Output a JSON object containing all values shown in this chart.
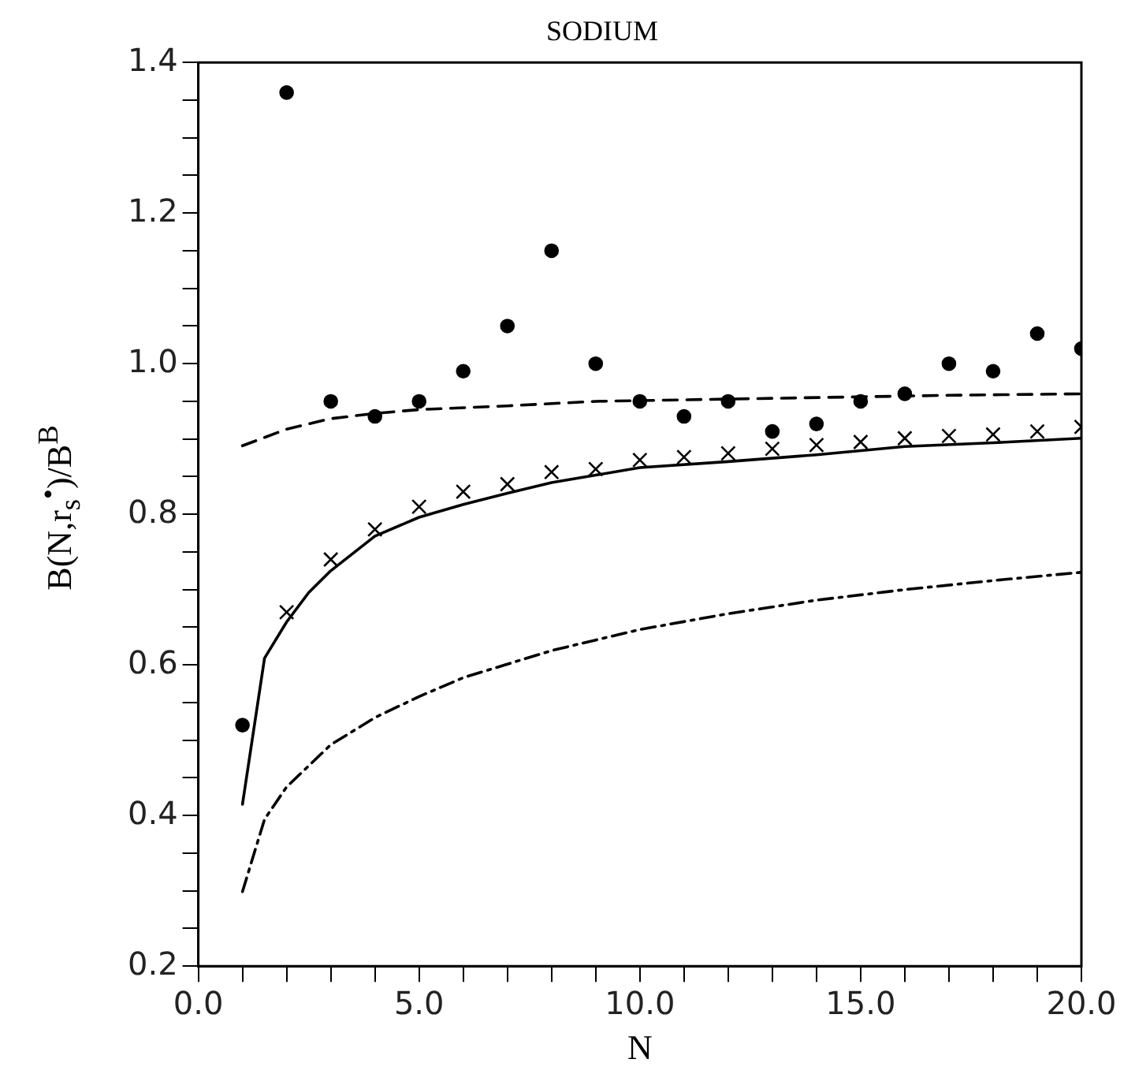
{
  "chart_data": {
    "type": "scatter",
    "title": "SODIUM",
    "xlabel": "N",
    "ylabel": "B(N,r$_{s}$$^{•}$)/B$^{B}$",
    "xlim": [
      0,
      20
    ],
    "ylim": [
      0.2,
      1.4
    ],
    "xticks": [
      {
        "value": 0,
        "label": "0.0"
      },
      {
        "value": 1,
        "label": null
      },
      {
        "value": 2,
        "label": null
      },
      {
        "value": 3,
        "label": null
      },
      {
        "value": 4,
        "label": null
      },
      {
        "value": 5,
        "label": "5.0"
      },
      {
        "value": 6,
        "label": null
      },
      {
        "value": 7,
        "label": null
      },
      {
        "value": 8,
        "label": null
      },
      {
        "value": 9,
        "label": null
      },
      {
        "value": 10,
        "label": "10.0"
      },
      {
        "value": 11,
        "label": null
      },
      {
        "value": 12,
        "label": null
      },
      {
        "value": 13,
        "label": null
      },
      {
        "value": 14,
        "label": null
      },
      {
        "value": 15,
        "label": "15.0"
      },
      {
        "value": 16,
        "label": null
      },
      {
        "value": 17,
        "label": null
      },
      {
        "value": 18,
        "label": null
      },
      {
        "value": 19,
        "label": null
      },
      {
        "value": 20,
        "label": "20.0"
      }
    ],
    "yticks": [
      {
        "value": 0.2,
        "label": "0.2"
      },
      {
        "value": 0.25,
        "label": null
      },
      {
        "value": 0.3,
        "label": null
      },
      {
        "value": 0.35,
        "label": null
      },
      {
        "value": 0.4,
        "label": "0.4"
      },
      {
        "value": 0.45,
        "label": null
      },
      {
        "value": 0.5,
        "label": null
      },
      {
        "value": 0.55,
        "label": null
      },
      {
        "value": 0.6,
        "label": "0.6"
      },
      {
        "value": 0.65,
        "label": null
      },
      {
        "value": 0.7,
        "label": null
      },
      {
        "value": 0.75,
        "label": null
      },
      {
        "value": 0.8,
        "label": "0.8"
      },
      {
        "value": 0.85,
        "label": null
      },
      {
        "value": 0.9,
        "label": null
      },
      {
        "value": 0.95,
        "label": null
      },
      {
        "value": 1.0,
        "label": "1.0"
      },
      {
        "value": 1.05,
        "label": null
      },
      {
        "value": 1.1,
        "label": null
      },
      {
        "value": 1.15,
        "label": null
      },
      {
        "value": 1.2,
        "label": "1.2"
      },
      {
        "value": 1.25,
        "label": null
      },
      {
        "value": 1.3,
        "label": null
      },
      {
        "value": 1.35,
        "label": null
      },
      {
        "value": 1.4,
        "label": "1.4"
      }
    ],
    "grid": false,
    "legend": false,
    "series": [
      {
        "marker": "circle",
        "color": "#000000",
        "x": [
          1,
          2,
          3,
          4,
          5,
          6,
          7,
          8,
          9,
          10,
          11,
          12,
          13,
          14,
          15,
          16,
          17,
          18,
          19,
          20
        ],
        "values": [
          0.52,
          1.36,
          0.95,
          0.93,
          0.95,
          0.99,
          1.05,
          1.15,
          1.0,
          0.95,
          0.93,
          0.95,
          0.91,
          0.92,
          0.95,
          0.96,
          1.0,
          0.99,
          1.04,
          1.02
        ]
      },
      {
        "marker": "cross",
        "color": "#000000",
        "x": [
          2,
          3,
          4,
          5,
          6,
          7,
          8,
          9,
          10,
          11,
          12,
          13,
          14,
          15,
          16,
          17,
          18,
          19,
          20
        ],
        "values": [
          0.67,
          0.74,
          0.78,
          0.81,
          0.83,
          0.84,
          0.856,
          0.86,
          0.872,
          0.876,
          0.881,
          0.887,
          0.892,
          0.896,
          0.901,
          0.904,
          0.906,
          0.91,
          0.916
        ]
      },
      {
        "type": "line",
        "line_style": "solid",
        "color": "#000000",
        "x": [
          1,
          1.5,
          2,
          2.5,
          3,
          4,
          5,
          6,
          7,
          8,
          9,
          10,
          12,
          14,
          16,
          18,
          20
        ],
        "values": [
          0.415,
          0.609,
          0.657,
          0.696,
          0.725,
          0.771,
          0.796,
          0.813,
          0.828,
          0.842,
          0.852,
          0.862,
          0.87,
          0.879,
          0.89,
          0.895,
          0.901
        ]
      },
      {
        "type": "line",
        "line_style": "dashed",
        "color": "#000000",
        "x": [
          1,
          2,
          3,
          4,
          5,
          7,
          9,
          10,
          12,
          15,
          17,
          20
        ],
        "values": [
          0.891,
          0.913,
          0.927,
          0.934,
          0.939,
          0.944,
          0.95,
          0.951,
          0.953,
          0.956,
          0.958,
          0.96
        ]
      },
      {
        "type": "line",
        "line_style": "dashdot",
        "color": "#000000",
        "x": [
          1,
          1.5,
          2,
          3,
          4,
          5,
          6,
          7,
          8,
          9,
          10,
          12,
          14,
          16,
          18,
          20
        ],
        "values": [
          0.299,
          0.395,
          0.438,
          0.494,
          0.53,
          0.558,
          0.583,
          0.601,
          0.619,
          0.633,
          0.647,
          0.668,
          0.686,
          0.7,
          0.712,
          0.723
        ]
      }
    ]
  }
}
